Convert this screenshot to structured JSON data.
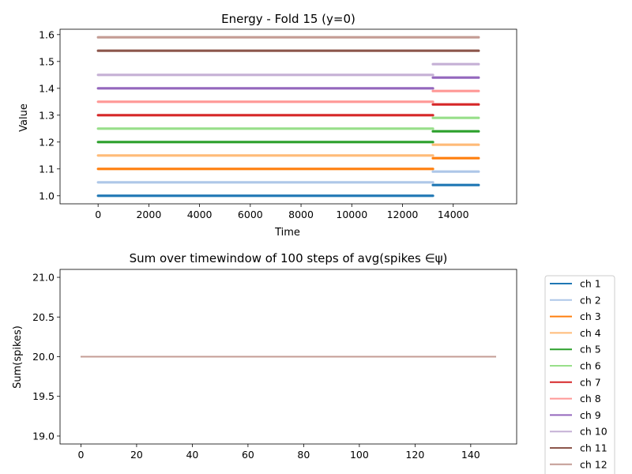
{
  "chart_data": [
    {
      "type": "line",
      "title": "Energy - Fold 15 (y=0)",
      "xlabel": "Time",
      "ylabel": "Value",
      "xlim": [
        -1500,
        16500
      ],
      "ylim": [
        0.97,
        1.62
      ],
      "xticks": [
        0,
        2000,
        4000,
        6000,
        8000,
        10000,
        12000,
        14000
      ],
      "xtick_labels": [
        "0",
        "2000",
        "4000",
        "6000",
        "8000",
        "10000",
        "12000",
        "14000"
      ],
      "yticks": [
        1.0,
        1.1,
        1.2,
        1.3,
        1.4,
        1.5,
        1.6
      ],
      "ytick_labels": [
        "1.0",
        "1.1",
        "1.2",
        "1.3",
        "1.4",
        "1.5",
        "1.6"
      ],
      "break_x": 13200,
      "x_end": 15000,
      "series": [
        {
          "color": "#1f77b4",
          "segments": [
            [
              0,
              13200,
              1.0
            ],
            [
              13200,
              15000,
              1.04
            ]
          ]
        },
        {
          "color": "#aec7e8",
          "segments": [
            [
              0,
              13200,
              1.05
            ],
            [
              13200,
              15000,
              1.09
            ]
          ]
        },
        {
          "color": "#ff7f0e",
          "segments": [
            [
              0,
              13200,
              1.1
            ],
            [
              13200,
              15000,
              1.14
            ]
          ]
        },
        {
          "color": "#ffbb78",
          "segments": [
            [
              0,
              13200,
              1.15
            ],
            [
              13200,
              15000,
              1.19
            ]
          ]
        },
        {
          "color": "#2ca02c",
          "segments": [
            [
              0,
              13200,
              1.2
            ],
            [
              13200,
              15000,
              1.24
            ]
          ]
        },
        {
          "color": "#98df8a",
          "segments": [
            [
              0,
              13200,
              1.25
            ],
            [
              13200,
              15000,
              1.29
            ]
          ]
        },
        {
          "color": "#d62728",
          "segments": [
            [
              0,
              13200,
              1.3
            ],
            [
              13200,
              15000,
              1.34
            ]
          ]
        },
        {
          "color": "#ff9896",
          "segments": [
            [
              0,
              13200,
              1.35
            ],
            [
              13200,
              15000,
              1.39
            ]
          ]
        },
        {
          "color": "#9467bd",
          "segments": [
            [
              0,
              13200,
              1.4
            ],
            [
              13200,
              15000,
              1.44
            ]
          ]
        },
        {
          "color": "#c5b0d5",
          "segments": [
            [
              0,
              13200,
              1.45
            ],
            [
              13200,
              15000,
              1.49
            ]
          ]
        },
        {
          "color": "#8c564b",
          "segments": [
            [
              0,
              15000,
              1.54
            ]
          ]
        },
        {
          "color": "#c49c94",
          "segments": [
            [
              0,
              15000,
              1.59
            ]
          ]
        }
      ]
    },
    {
      "type": "line",
      "title": "Sum over timewindow of 100 steps of avg(spikes ∈ψ)",
      "xlabel": "",
      "ylabel": "Sum(spikes)",
      "xlim": [
        -7.5,
        156.5
      ],
      "ylim": [
        18.9,
        21.1
      ],
      "xticks": [
        0,
        20,
        40,
        60,
        80,
        100,
        120,
        140
      ],
      "xtick_labels": [
        "0",
        "20",
        "40",
        "60",
        "80",
        "100",
        "120",
        "140"
      ],
      "yticks": [
        19.0,
        19.5,
        20.0,
        20.5,
        21.0
      ],
      "ytick_labels": [
        "19.0",
        "19.5",
        "20.0",
        "20.5",
        "21.0"
      ],
      "x_range": [
        0,
        149
      ],
      "series": [
        {
          "name": "ch 1",
          "color": "#1f77b4",
          "value": 20.0
        },
        {
          "name": "ch 2",
          "color": "#aec7e8",
          "value": 20.0
        },
        {
          "name": "ch 3",
          "color": "#ff7f0e",
          "value": 20.0
        },
        {
          "name": "ch 4",
          "color": "#ffbb78",
          "value": 20.0
        },
        {
          "name": "ch 5",
          "color": "#2ca02c",
          "value": 20.0
        },
        {
          "name": "ch 6",
          "color": "#98df8a",
          "value": 20.0
        },
        {
          "name": "ch 7",
          "color": "#d62728",
          "value": 20.0
        },
        {
          "name": "ch 8",
          "color": "#ff9896",
          "value": 20.0
        },
        {
          "name": "ch 9",
          "color": "#9467bd",
          "value": 20.0
        },
        {
          "name": "ch 10",
          "color": "#c5b0d5",
          "value": 20.0
        },
        {
          "name": "ch 11",
          "color": "#8c564b",
          "value": 20.0
        },
        {
          "name": "ch 12",
          "color": "#c49c94",
          "value": 20.0
        }
      ],
      "legend_position": "right"
    }
  ]
}
